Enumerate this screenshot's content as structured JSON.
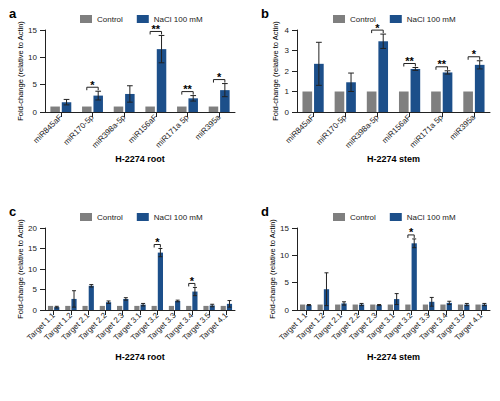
{
  "chart_data": [
    {
      "type": "bar",
      "title": "a",
      "xlabel": "H-2274 root",
      "ylabel": "Fold-change (relative to Actin)",
      "categories": [
        "miR845aF",
        "miR170-5p",
        "miR398a-5p",
        "miR156aF",
        "miR171a 5p",
        "miR395a"
      ],
      "series": [
        {
          "name": "Control",
          "color": "#7f7f7f",
          "values": [
            1,
            1,
            1,
            1,
            1,
            1
          ]
        },
        {
          "name": "NaCl 100 mM",
          "color": "#1c4f8a",
          "values": [
            1.8,
            3.0,
            3.3,
            11.5,
            2.5,
            4.0
          ],
          "errors": [
            0.5,
            0.8,
            1.5,
            2.5,
            0.5,
            1.2
          ]
        }
      ],
      "ylim": [
        0,
        15
      ],
      "yticks": [
        0,
        5,
        10,
        15
      ],
      "grid": false,
      "legend": "top",
      "significance": [
        {
          "category": "miR170-5p",
          "label": "*"
        },
        {
          "category": "miR156aF",
          "label": "**"
        },
        {
          "category": "miR171a 5p",
          "label": "**"
        },
        {
          "category": "miR395a",
          "label": "*"
        }
      ]
    },
    {
      "type": "bar",
      "title": "b",
      "xlabel": "H-2274 stem",
      "ylabel": "Fold-change (relative to Actin)",
      "categories": [
        "miR845aF",
        "miR170-5p",
        "miR398a-5p",
        "miR156aF",
        "miR171a 5p",
        "miR395a"
      ],
      "series": [
        {
          "name": "Control",
          "color": "#7f7f7f",
          "values": [
            1,
            1,
            1,
            1,
            1,
            1
          ]
        },
        {
          "name": "NaCl 100 mM",
          "color": "#1c4f8a",
          "values": [
            2.35,
            1.45,
            3.45,
            2.1,
            1.93,
            2.3
          ],
          "errors": [
            1.05,
            0.45,
            0.35,
            0.07,
            0.08,
            0.2
          ]
        }
      ],
      "ylim": [
        0,
        4
      ],
      "yticks": [
        0,
        1,
        2,
        3,
        4
      ],
      "grid": false,
      "legend": "top",
      "significance": [
        {
          "category": "miR398a-5p",
          "label": "*"
        },
        {
          "category": "miR156aF",
          "label": "**"
        },
        {
          "category": "miR171a 5p",
          "label": "**"
        },
        {
          "category": "miR395a",
          "label": "*"
        }
      ]
    },
    {
      "type": "bar",
      "title": "c",
      "xlabel": "H-2274 root",
      "ylabel": "Fold-change (relative to Actin)",
      "categories": [
        "Target 1.1",
        "Target 1.2",
        "Target 2.1",
        "Target 2.2",
        "Target 2.3",
        "Target 3.1",
        "Target 3.2",
        "Target 3.3",
        "Target 3.4",
        "Target 3.5",
        "Target 4.1"
      ],
      "series": [
        {
          "name": "Control",
          "color": "#7f7f7f",
          "values": [
            1,
            1,
            1,
            1,
            1,
            1,
            1,
            1,
            1,
            1,
            1
          ]
        },
        {
          "name": "NaCl 100 mM",
          "color": "#1c4f8a",
          "values": [
            0.7,
            2.7,
            5.9,
            1.9,
            2.7,
            1.3,
            14.0,
            2.2,
            4.5,
            1.1,
            1.5
          ],
          "errors": [
            0.2,
            2.0,
            0.3,
            0.3,
            0.3,
            0.3,
            1.0,
            0.2,
            1.0,
            0.3,
            0.8
          ]
        }
      ],
      "ylim": [
        0,
        20
      ],
      "yticks": [
        0,
        5,
        10,
        15,
        20
      ],
      "grid": false,
      "legend": "top",
      "significance": [
        {
          "category": "Target 3.2",
          "label": "*"
        },
        {
          "category": "Target 3.4",
          "label": "*"
        }
      ]
    },
    {
      "type": "bar",
      "title": "d",
      "xlabel": "H-2274 stem",
      "ylabel": "Fold-change (relative to Actin)",
      "categories": [
        "Target 1.1",
        "Target 1.2",
        "Target 2.1",
        "Target 2.2",
        "Target 2.3",
        "Target 3.1",
        "Target 3.2",
        "Target 3.3",
        "Target 3.4",
        "Target 3.5",
        "Target 4.1"
      ],
      "series": [
        {
          "name": "Control",
          "color": "#7f7f7f",
          "values": [
            1,
            1,
            1,
            1,
            1,
            1,
            1,
            1,
            1,
            1,
            1
          ]
        },
        {
          "name": "NaCl 100 mM",
          "color": "#1c4f8a",
          "values": [
            0.9,
            3.8,
            1.2,
            1.0,
            0.9,
            2.0,
            12.2,
            1.5,
            1.3,
            1.0,
            1.0
          ],
          "errors": [
            0.1,
            3.0,
            0.3,
            0.2,
            0.1,
            1.0,
            0.8,
            0.8,
            0.3,
            0.2,
            0.2
          ]
        }
      ],
      "ylim": [
        0,
        15
      ],
      "yticks": [
        0,
        5,
        10,
        15
      ],
      "grid": false,
      "legend": "top",
      "significance": [
        {
          "category": "Target 3.2",
          "label": "*"
        }
      ]
    }
  ]
}
